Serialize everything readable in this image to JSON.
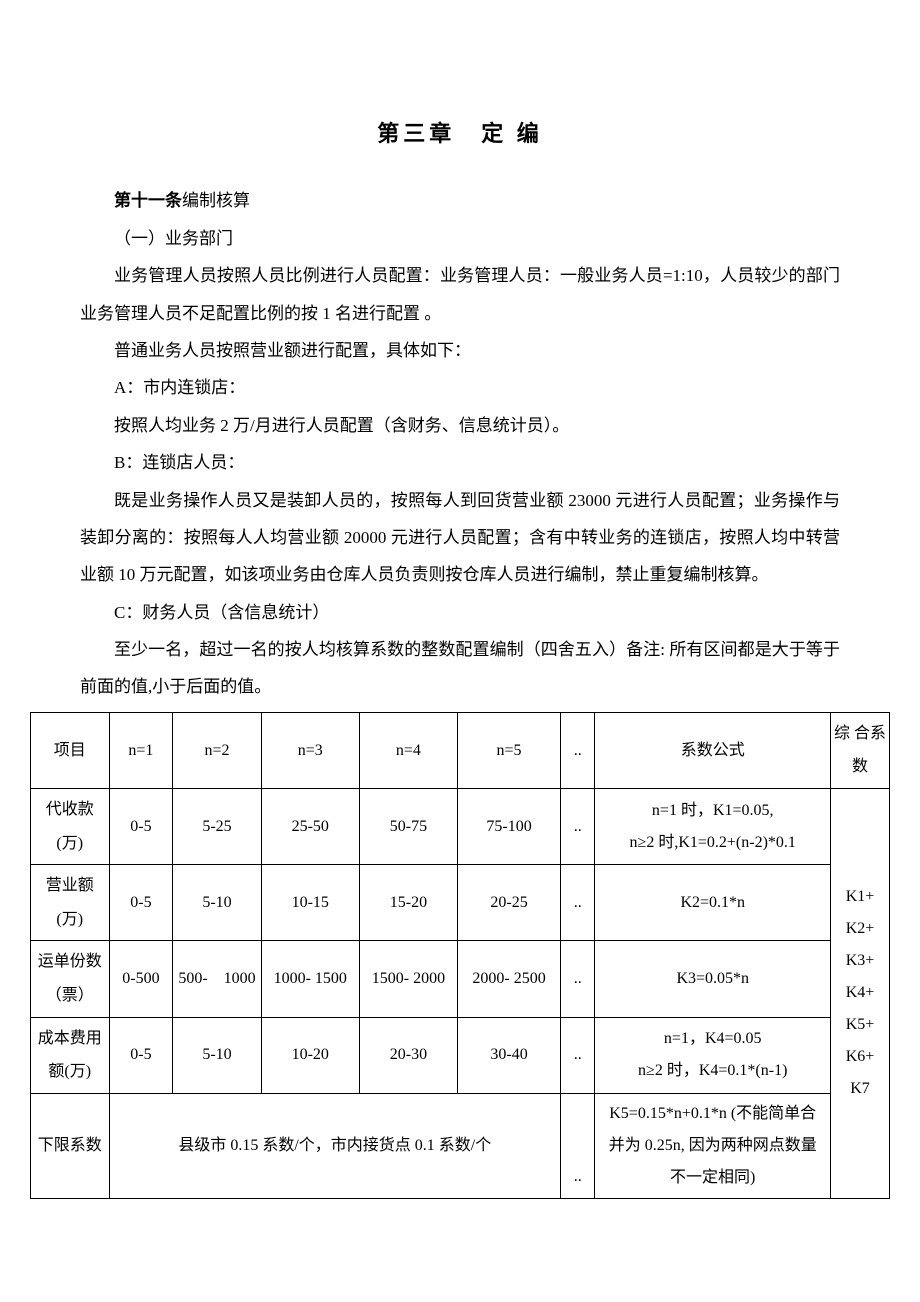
{
  "chapter_title": "第三章　定 编",
  "article": {
    "label": "第十一条",
    "title": "编制核算"
  },
  "section1": {
    "heading": "（一）业务部门",
    "p1": "业务管理人员按照人员比例进行人员配置：业务管理人员：一般业务人员=1:10，人员较少的部门业务管理人员不足配置比例的按 1 名进行配置 。",
    "p2": "普通业务人员按照营业额进行配置，具体如下：",
    "a_label": "A：市内连锁店：",
    "a_text": "按照人均业务 2 万/月进行人员配置（含财务、信息统计员）。",
    "b_label": "B：连锁店人员：",
    "b_text": "既是业务操作人员又是装卸人员的，按照每人到回货营业额 23000 元进行人员配置；业务操作与装卸分离的：按照每人人均营业额 20000 元进行人员配置；含有中转业务的连锁店，按照人均中转营业额 10 万元配置，如该项业务由仓库人员负责则按仓库人员进行编制，禁止重复编制核算。",
    "c_label": "C：财务人员（含信息统计）",
    "c_text": "至少一名，超过一名的按人均核算系数的整数配置编制（四舍五入）备注: 所有区间都是大于等于前面的值,小于后面的值。"
  },
  "table": {
    "headers": {
      "project": "项目",
      "n1": "n=1",
      "n2": "n=2",
      "n3": "n=3",
      "n4": "n=4",
      "n5": "n=5",
      "dots": "..",
      "formula": "系数公式",
      "coef": "综 合系数"
    },
    "rows": {
      "collection": {
        "label": "代收款(万)",
        "n1": "0-5",
        "n2": "5-25",
        "n3": "25-50",
        "n4": "50-75",
        "n5": "75-100",
        "dots": "..",
        "formula": "n=1 时，K1=0.05,\nn≥2 时,K1=0.2+(n-2)*0.1"
      },
      "revenue": {
        "label": "营业额(万)",
        "n1": "0-5",
        "n2": "5-10",
        "n3": "10-15",
        "n4": "15-20",
        "n5": "20-25",
        "dots": "..",
        "formula": "K2=0.1*n"
      },
      "waybill": {
        "label": "运单份数（票）",
        "n1": "0-500",
        "n2": "500-　1000",
        "n3": "1000- 1500",
        "n4": "1500- 2000",
        "n5": "2000- 2500",
        "dots": "..",
        "formula": "K3=0.05*n"
      },
      "cost": {
        "label": "成本费用额(万)",
        "n1": "0-5",
        "n2": "5-10",
        "n3": "10-20",
        "n4": "20-30",
        "n5": "30-40",
        "dots": "..",
        "formula": "n=1，K4=0.05\nn≥2 时，K4=0.1*(n-1)"
      },
      "lower": {
        "label": "下限系数",
        "merged": "县级市 0.15 系数/个，市内接货点 0.1 系数/个",
        "dots": "..",
        "formula": "K5=0.15*n+0.1*n (不能简单合并为 0.25n, 因为两种网点数量不一定相同)"
      }
    },
    "coef_merged": "K1+\nK2+\nK3+\nK4+\nK5+\nK6+\nK7"
  }
}
